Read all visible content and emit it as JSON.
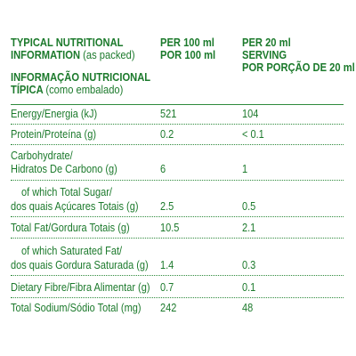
{
  "header": {
    "label_en_line1": "TYPICAL NUTRITIONAL",
    "label_en_line2_bold": "INFORMATION",
    "label_en_line2_light": "(as packed)",
    "label_pt_line1": "INFORMAÇÃO NUTRICIONAL",
    "label_pt_line2_bold": "TÍPICA",
    "label_pt_line2_light": "(como embalado)",
    "col1_line1": "PER 100 ml",
    "col1_line2": "POR 100 ml",
    "col2_line1": "PER 20 ml",
    "col2_line2": "SERVING",
    "col2_line3": "POR PORÇÃO DE 20 ml"
  },
  "rows": [
    {
      "name_lines": [
        "Energy/Energia (kJ)"
      ],
      "per100": "521",
      "per20": "104"
    },
    {
      "name_lines": [
        "Protein/Proteína (g)"
      ],
      "per100": "0.2",
      "per20": "< 0.1"
    },
    {
      "name_lines": [
        "Carbohydrate/",
        "Hidratos De Carbono (g)"
      ],
      "per100": "6",
      "per20": "1"
    },
    {
      "name_lines": [
        "of which Total Sugar/",
        "dos quais Açúcares Totais (g)"
      ],
      "per100": "2.5",
      "per20": "0.5"
    },
    {
      "name_lines": [
        "Total Fat/Gordura Totais (g)"
      ],
      "per100": "10.5",
      "per20": "2.1"
    },
    {
      "name_lines": [
        "of which Saturated Fat/",
        "dos quais Gordura Saturada (g)"
      ],
      "per100": "1.4",
      "per20": "0.3"
    },
    {
      "name_lines": [
        "Dietary Fibre/Fibra Alimentar (g)"
      ],
      "per100": "0.7",
      "per20": "0.1"
    },
    {
      "name_lines": [
        "Total Sodium/Sódio Total (mg)"
      ],
      "per100": "242",
      "per20": "48"
    }
  ],
  "colors": {
    "text": "#1c7a2c",
    "rule": "#2e8a3c",
    "background": "#ffffff"
  }
}
